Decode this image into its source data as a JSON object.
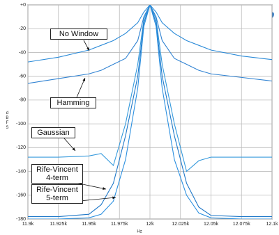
{
  "chart_data": {
    "type": "line",
    "logo_text": "Ap",
    "y_label": "dBFS",
    "x_label": "Hz",
    "x": [
      11900,
      11925,
      11950,
      11960,
      11970,
      11980,
      11990,
      11995,
      12000,
      12005,
      12010,
      12020,
      12030,
      12040,
      12050,
      12075,
      12100
    ],
    "series": [
      {
        "name": "No Window",
        "color": "#2a8ad8",
        "values": [
          -48,
          -44,
          -38,
          -34,
          -30,
          -24,
          -15,
          -6,
          0,
          -6,
          -15,
          -24,
          -30,
          -34,
          -38,
          -43,
          -46
        ]
      },
      {
        "name": "Hamming",
        "color": "#2f82d2",
        "values": [
          -66,
          -62,
          -58,
          -55,
          -50,
          -45,
          -30,
          -10,
          0,
          -10,
          -30,
          -45,
          -50,
          -55,
          -58,
          -61,
          -64
        ]
      },
      {
        "name": "Gaussian",
        "color": "#3499dc",
        "values": [
          -128,
          -128,
          -127,
          -125,
          -135,
          -100,
          -50,
          -12,
          0,
          -12,
          -50,
          -100,
          -140,
          -131,
          -128,
          -128,
          -128
        ]
      },
      {
        "name": "Rife-Vincent 4-term",
        "color": "#1f78c8",
        "values": [
          -178,
          -178,
          -176,
          -168,
          -150,
          -110,
          -60,
          -15,
          0,
          -15,
          -60,
          -110,
          -150,
          -170,
          -177,
          -178,
          -178
        ]
      },
      {
        "name": "Rife-Vincent 5-term",
        "color": "#2c90e0",
        "values": [
          -180,
          -180,
          -179,
          -176,
          -165,
          -130,
          -70,
          -18,
          0,
          -18,
          -70,
          -130,
          -160,
          -175,
          -179,
          -180,
          -180
        ]
      }
    ],
    "xlim": [
      11900,
      12100
    ],
    "xticks": [
      {
        "value": 11900,
        "label": "11.9k"
      },
      {
        "value": 11925,
        "label": "11.925k"
      },
      {
        "value": 11950,
        "label": "11.95k"
      },
      {
        "value": 11975,
        "label": "11.975k"
      },
      {
        "value": 12000,
        "label": "12k"
      },
      {
        "value": 12025,
        "label": "12.025k"
      },
      {
        "value": 12050,
        "label": "12.05k"
      },
      {
        "value": 12075,
        "label": "12.075k"
      },
      {
        "value": 12100,
        "label": "12.1k"
      }
    ],
    "ylim": [
      -180,
      0
    ],
    "yticks": [
      {
        "value": 0,
        "label": "+0"
      },
      -20,
      -40,
      -60,
      -80,
      -100,
      -120,
      -140,
      -160,
      -180
    ],
    "grid": true
  }
}
